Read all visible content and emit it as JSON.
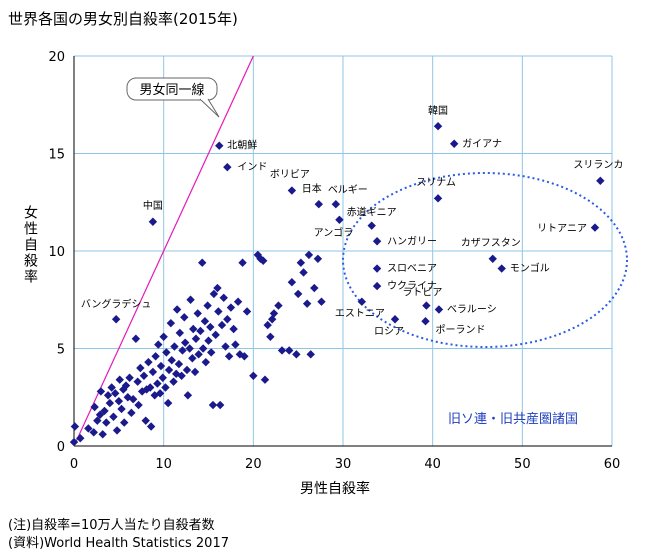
{
  "title": "世界各国の男女別自殺率(2015年)",
  "notes": [
    "(注)自殺率=10万人当たり自殺者数",
    "(資料)World Health Statistics 2017"
  ],
  "chart_data": {
    "type": "scatter",
    "title": "世界各国の男女別自殺率(2015年)",
    "xlabel": "男性自殺率",
    "ylabel": "女性自殺率",
    "xlim": [
      0,
      60
    ],
    "ylim": [
      0,
      20
    ],
    "xticks": [
      0,
      10,
      20,
      30,
      40,
      50,
      60
    ],
    "yticks": [
      0,
      5,
      10,
      15,
      20
    ],
    "grid": true,
    "marker_color": "#1a1a8c",
    "reference_line": {
      "label": "男女同一線",
      "color": "#e619b8",
      "x": [
        0,
        20
      ],
      "y": [
        0,
        20
      ]
    },
    "region": {
      "label": "旧ソ連・旧共産圏諸国",
      "color": "#2a5ce6"
    },
    "labeled_points": [
      {
        "name": "韓国",
        "x": 40.6,
        "y": 16.4
      },
      {
        "name": "北朝鮮",
        "x": 16.2,
        "y": 15.4
      },
      {
        "name": "ガイアナ",
        "x": 42.4,
        "y": 15.5
      },
      {
        "name": "インド",
        "x": 17.1,
        "y": 14.3
      },
      {
        "name": "スリランカ",
        "x": 58.7,
        "y": 13.6
      },
      {
        "name": "ボリビア",
        "x": 24.3,
        "y": 13.1
      },
      {
        "name": "日本",
        "x": 27.3,
        "y": 12.4
      },
      {
        "name": "ベルギー",
        "x": 29.2,
        "y": 12.4
      },
      {
        "name": "スリナム",
        "x": 40.6,
        "y": 12.7
      },
      {
        "name": "赤道ギニア",
        "x": 33.2,
        "y": 11.3
      },
      {
        "name": "アンゴラ",
        "x": 29.6,
        "y": 11.6
      },
      {
        "name": "中国",
        "x": 8.8,
        "y": 11.5
      },
      {
        "name": "リトアニア",
        "x": 58.1,
        "y": 11.2
      },
      {
        "name": "ハンガリー",
        "x": 33.8,
        "y": 10.5
      },
      {
        "name": "カザフスタン",
        "x": 46.7,
        "y": 9.6
      },
      {
        "name": "モンゴル",
        "x": 47.7,
        "y": 9.1
      },
      {
        "name": "スロベニア",
        "x": 33.8,
        "y": 9.1
      },
      {
        "name": "ウクライナ",
        "x": 33.8,
        "y": 8.2
      },
      {
        "name": "ラトビア",
        "x": 39.3,
        "y": 7.2
      },
      {
        "name": "ベラルーシ",
        "x": 40.7,
        "y": 7.0
      },
      {
        "name": "エストニア",
        "x": 32.1,
        "y": 7.4
      },
      {
        "name": "ロシア",
        "x": 35.8,
        "y": 6.5
      },
      {
        "name": "ポーランド",
        "x": 39.2,
        "y": 6.4
      },
      {
        "name": "バングラデシュ",
        "x": 4.7,
        "y": 6.5
      }
    ],
    "other_points": [
      [
        0.0,
        0.2
      ],
      [
        0.1,
        1.0
      ],
      [
        0.7,
        0.4
      ],
      [
        1.6,
        0.9
      ],
      [
        2.2,
        0.7
      ],
      [
        2.3,
        2.0
      ],
      [
        2.6,
        1.3
      ],
      [
        2.9,
        1.6
      ],
      [
        3.0,
        2.8
      ],
      [
        3.2,
        0.6
      ],
      [
        3.4,
        1.8
      ],
      [
        3.6,
        1.2
      ],
      [
        3.8,
        2.6
      ],
      [
        4.0,
        2.2
      ],
      [
        4.2,
        3.0
      ],
      [
        4.4,
        1.5
      ],
      [
        4.6,
        2.7
      ],
      [
        4.8,
        0.8
      ],
      [
        5.0,
        2.3
      ],
      [
        5.1,
        3.4
      ],
      [
        5.3,
        1.9
      ],
      [
        5.5,
        2.9
      ],
      [
        5.6,
        1.2
      ],
      [
        5.8,
        3.1
      ],
      [
        6.0,
        2.5
      ],
      [
        6.2,
        3.5
      ],
      [
        6.4,
        1.7
      ],
      [
        6.6,
        2.4
      ],
      [
        6.9,
        5.5
      ],
      [
        7.1,
        3.3
      ],
      [
        7.2,
        2.1
      ],
      [
        7.4,
        4.0
      ],
      [
        7.6,
        2.8
      ],
      [
        7.8,
        3.6
      ],
      [
        8.0,
        1.3
      ],
      [
        8.1,
        2.9
      ],
      [
        8.3,
        4.3
      ],
      [
        8.5,
        3.0
      ],
      [
        8.6,
        1.0
      ],
      [
        8.8,
        3.8
      ],
      [
        9.0,
        2.6
      ],
      [
        9.1,
        4.6
      ],
      [
        9.3,
        3.2
      ],
      [
        9.4,
        5.2
      ],
      [
        9.6,
        2.7
      ],
      [
        9.7,
        4.1
      ],
      [
        9.9,
        3.5
      ],
      [
        10.0,
        5.6
      ],
      [
        10.2,
        3.0
      ],
      [
        10.3,
        4.8
      ],
      [
        10.5,
        2.2
      ],
      [
        10.6,
        3.9
      ],
      [
        10.8,
        6.3
      ],
      [
        10.9,
        4.4
      ],
      [
        11.1,
        3.3
      ],
      [
        11.2,
        5.1
      ],
      [
        11.4,
        3.7
      ],
      [
        11.5,
        7.0
      ],
      [
        11.7,
        4.2
      ],
      [
        11.8,
        5.8
      ],
      [
        12.0,
        3.6
      ],
      [
        12.1,
        4.9
      ],
      [
        12.3,
        6.6
      ],
      [
        12.4,
        5.3
      ],
      [
        12.6,
        3.9
      ],
      [
        12.7,
        2.6
      ],
      [
        12.9,
        5.0
      ],
      [
        13.0,
        7.5
      ],
      [
        13.2,
        4.5
      ],
      [
        13.3,
        6.0
      ],
      [
        13.5,
        3.8
      ],
      [
        13.6,
        5.5
      ],
      [
        13.8,
        6.8
      ],
      [
        13.9,
        4.7
      ],
      [
        14.1,
        5.9
      ],
      [
        14.3,
        9.4
      ],
      [
        14.4,
        5.0
      ],
      [
        14.6,
        6.4
      ],
      [
        14.7,
        4.3
      ],
      [
        14.9,
        7.2
      ],
      [
        15.0,
        5.4
      ],
      [
        15.2,
        6.1
      ],
      [
        15.3,
        4.8
      ],
      [
        15.5,
        2.1
      ],
      [
        15.6,
        7.8
      ],
      [
        15.8,
        5.7
      ],
      [
        16.0,
        8.1
      ],
      [
        16.1,
        6.9
      ],
      [
        16.3,
        2.1
      ],
      [
        16.5,
        6.2
      ],
      [
        16.7,
        7.6
      ],
      [
        16.9,
        5.1
      ],
      [
        17.1,
        6.5
      ],
      [
        17.3,
        4.6
      ],
      [
        17.5,
        7.1
      ],
      [
        17.8,
        6.0
      ],
      [
        18.0,
        5.2
      ],
      [
        18.3,
        7.4
      ],
      [
        18.5,
        4.7
      ],
      [
        18.8,
        9.4
      ],
      [
        19.0,
        4.6
      ],
      [
        19.3,
        6.9
      ],
      [
        20.0,
        3.6
      ],
      [
        20.5,
        9.8
      ],
      [
        20.8,
        9.6
      ],
      [
        21.1,
        9.5
      ],
      [
        21.3,
        3.4
      ],
      [
        21.6,
        6.2
      ],
      [
        21.9,
        5.6
      ],
      [
        22.1,
        6.5
      ],
      [
        22.3,
        6.8
      ],
      [
        22.8,
        7.2
      ],
      [
        23.2,
        4.9
      ],
      [
        24.0,
        4.9
      ],
      [
        24.3,
        8.4
      ],
      [
        24.8,
        4.7
      ],
      [
        25.0,
        7.8
      ],
      [
        25.3,
        9.4
      ],
      [
        25.6,
        8.9
      ],
      [
        26.0,
        7.3
      ],
      [
        26.2,
        9.8
      ],
      [
        26.4,
        4.7
      ],
      [
        26.8,
        8.1
      ],
      [
        27.2,
        9.6
      ],
      [
        27.6,
        7.4
      ]
    ]
  }
}
